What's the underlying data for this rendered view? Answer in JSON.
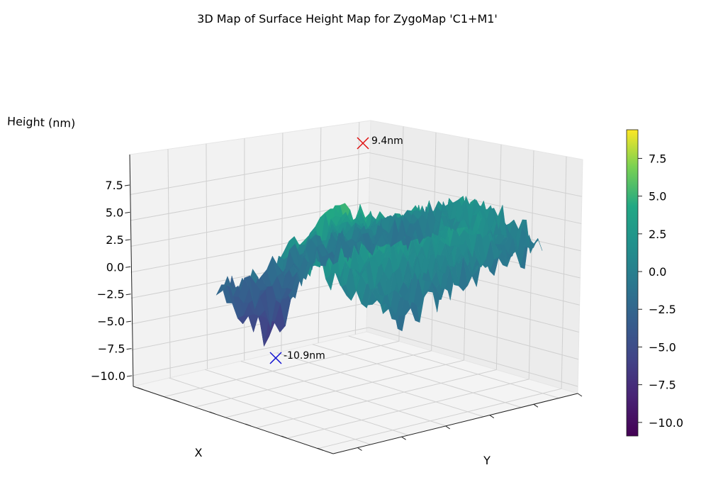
{
  "chart_data": {
    "type": "surface3d",
    "title": "3D Map of Surface Height Map for ZygoMap 'C1+M1'",
    "xlabel": "X",
    "ylabel": "Y",
    "zlabel": "Height (nm)",
    "zlim": [
      -10.9,
      9.4
    ],
    "z_ticks": [
      "−10.0",
      "−7.5",
      "−5.0",
      "−2.5",
      "0.0",
      "2.5",
      "5.0",
      "7.5"
    ],
    "z_tick_values": [
      -10,
      -7.5,
      -5,
      -2.5,
      0,
      2.5,
      5,
      7.5
    ],
    "colormap": "viridis",
    "colorbar": {
      "range": [
        -10.9,
        9.4
      ],
      "ticks": [
        "−10.0",
        "−7.5",
        "−5.0",
        "−2.5",
        "0.0",
        "2.5",
        "5.0",
        "7.5"
      ],
      "tick_values": [
        -10,
        -7.5,
        -5,
        -2.5,
        0,
        2.5,
        5,
        7.5
      ]
    },
    "annotations": [
      {
        "label": "9.4nm",
        "value": 9.4,
        "kind": "max",
        "color": "#e01010"
      },
      {
        "label": "-10.9nm",
        "value": -10.9,
        "kind": "min",
        "color": "#1010d0"
      }
    ],
    "grid": true
  }
}
